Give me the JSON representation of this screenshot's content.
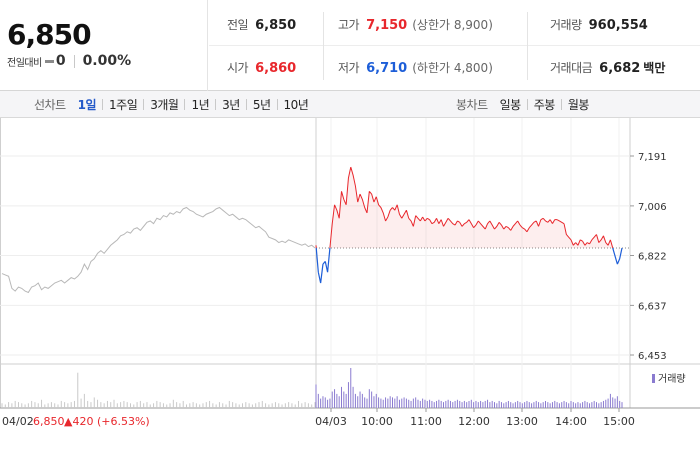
{
  "quote": {
    "price": "6,850",
    "change_label": "전일대비",
    "change_value": "0",
    "change_pct": "0.00%",
    "stats": {
      "prev_close": {
        "label": "전일",
        "value": "6,850"
      },
      "high": {
        "label": "고가",
        "value": "7,150",
        "sub": "(상한가 8,900)"
      },
      "volume": {
        "label": "거래량",
        "value": "960,554"
      },
      "open": {
        "label": "시가",
        "value": "6,860"
      },
      "low": {
        "label": "저가",
        "value": "6,710",
        "sub": "(하한가 4,800)"
      },
      "trade_value": {
        "label": "거래대금",
        "value": "6,682",
        "unit": "백만"
      }
    }
  },
  "toolbar": {
    "line_chart_label": "선차트",
    "line_periods": [
      "1일",
      "1주일",
      "3개월",
      "1년",
      "3년",
      "5년",
      "10년"
    ],
    "active_period": "1일",
    "candle_chart_label": "봉차트",
    "candle_periods": [
      "일봉",
      "주봉",
      "월봉"
    ]
  },
  "colors": {
    "up": "#e8272c",
    "down": "#1d5ed8",
    "prev_day": "#b8b8b8",
    "volume": "#8a7bd0",
    "active": "#2459c9"
  },
  "chart_data": {
    "type": "line",
    "y_ticks": [
      "7,191",
      "7,006",
      "6,822",
      "6,637",
      "6,453"
    ],
    "ylim": [
      6453,
      7191
    ],
    "baseline": 6850,
    "x_ticks": [
      "04/03",
      "10:00",
      "11:00",
      "12:00",
      "13:00",
      "14:00",
      "15:00"
    ],
    "volume_legend": "거래량",
    "footer": {
      "date": "04/02",
      "close": "6,850",
      "change": "▲420 (+6.53%)"
    },
    "series": [
      {
        "name": "04/02",
        "values": [
          6755,
          6750,
          6745,
          6700,
          6690,
          6705,
          6700,
          6690,
          6685,
          6705,
          6710,
          6720,
          6695,
          6705,
          6700,
          6710,
          6720,
          6725,
          6730,
          6720,
          6730,
          6740,
          6735,
          6745,
          6760,
          6790,
          6770,
          6800,
          6810,
          6830,
          6840,
          6830,
          6845,
          6860,
          6870,
          6880,
          6895,
          6900,
          6910,
          6905,
          6920,
          6925,
          6915,
          6930,
          6945,
          6950,
          6940,
          6960,
          6955,
          6970,
          6965,
          6980,
          6975,
          6985,
          6980,
          6995,
          7000,
          6990,
          6985,
          6975,
          6970,
          6965,
          6975,
          6980,
          6985,
          6995,
          7000,
          6990,
          6980,
          6970,
          6975,
          6965,
          6955,
          6960,
          6955,
          6945,
          6935,
          6925,
          6930,
          6920,
          6910,
          6890,
          6885,
          6880,
          6870,
          6875,
          6870,
          6880,
          6875,
          6870,
          6865,
          6860,
          6865,
          6855,
          6860,
          6850
        ]
      },
      {
        "name": "04/03",
        "values": [
          6860,
          6760,
          6720,
          6790,
          6800,
          6760,
          6850,
          6940,
          7010,
          6990,
          6960,
          7060,
          7030,
          7010,
          7110,
          7150,
          7120,
          7080,
          7020,
          7050,
          7030,
          7000,
          6980,
          7060,
          7050,
          7020,
          7040,
          7010,
          7000,
          6980,
          6950,
          6965,
          6990,
          7000,
          6990,
          7010,
          6975,
          6960,
          6975,
          6990,
          6960,
          6950,
          6930,
          6970,
          6960,
          6950,
          6965,
          6950,
          6960,
          6955,
          6940,
          6945,
          6960,
          6940,
          6955,
          6930,
          6945,
          6960,
          6950,
          6940,
          6935,
          6950,
          6945,
          6930,
          6940,
          6945,
          6955,
          6940,
          6925,
          6935,
          6950,
          6940,
          6930,
          6920,
          6940,
          6950,
          6935,
          6920,
          6930,
          6945,
          6935,
          6920,
          6930,
          6925,
          6915,
          6930,
          6940,
          6950,
          6935,
          6925,
          6920,
          6910,
          6925,
          6935,
          6945,
          6950,
          6930,
          6955,
          6960,
          6950,
          6945,
          6955,
          6940,
          6955,
          6955,
          6950,
          6945,
          6940,
          6900,
          6890,
          6880,
          6860,
          6870,
          6860,
          6880,
          6875,
          6860,
          6870,
          6865,
          6880,
          6890,
          6900,
          6870,
          6880,
          6895,
          6870,
          6860,
          6880,
          6850,
          6820,
          6790,
          6810,
          6850
        ]
      }
    ],
    "volume": {
      "prev": [
        4,
        3,
        5,
        4,
        6,
        5,
        4,
        3,
        4,
        6,
        5,
        4,
        7,
        3,
        4,
        5,
        4,
        3,
        6,
        5,
        4,
        5,
        6,
        30,
        8,
        12,
        6,
        5,
        9,
        7,
        5,
        4,
        6,
        5,
        7,
        4,
        5,
        6,
        5,
        4,
        3,
        5,
        6,
        4,
        5,
        3,
        4,
        6,
        5,
        4,
        3,
        4,
        7,
        5,
        4,
        6,
        3,
        4,
        5,
        4,
        3,
        4,
        5,
        6,
        4,
        3,
        5,
        4,
        3,
        6,
        5,
        4,
        3,
        4,
        5,
        4,
        3,
        4,
        5,
        6,
        4,
        3,
        4,
        5,
        4,
        3,
        4,
        5,
        4,
        3,
        6,
        4,
        5,
        4,
        3,
        5
      ],
      "today": [
        20,
        12,
        8,
        10,
        9,
        7,
        8,
        14,
        16,
        12,
        10,
        18,
        14,
        12,
        22,
        34,
        18,
        12,
        10,
        14,
        12,
        9,
        8,
        16,
        14,
        10,
        12,
        9,
        8,
        7,
        9,
        8,
        10,
        9,
        8,
        10,
        7,
        8,
        9,
        8,
        7,
        6,
        8,
        9,
        7,
        6,
        8,
        7,
        6,
        7,
        6,
        5,
        6,
        7,
        6,
        5,
        6,
        7,
        6,
        5,
        6,
        7,
        6,
        5,
        6,
        5,
        6,
        7,
        5,
        6,
        5,
        6,
        5,
        6,
        7,
        5,
        6,
        5,
        4,
        6,
        5,
        4,
        5,
        6,
        5,
        4,
        5,
        6,
        5,
        4,
        5,
        6,
        5,
        4,
        5,
        6,
        5,
        4,
        5,
        6,
        5,
        4,
        5,
        6,
        5,
        4,
        5,
        6,
        5,
        4,
        6,
        5,
        4,
        5,
        4,
        5,
        6,
        5,
        4,
        5,
        6,
        5,
        4,
        5,
        6,
        7,
        8,
        12,
        9,
        8,
        10,
        6,
        5
      ]
    }
  }
}
